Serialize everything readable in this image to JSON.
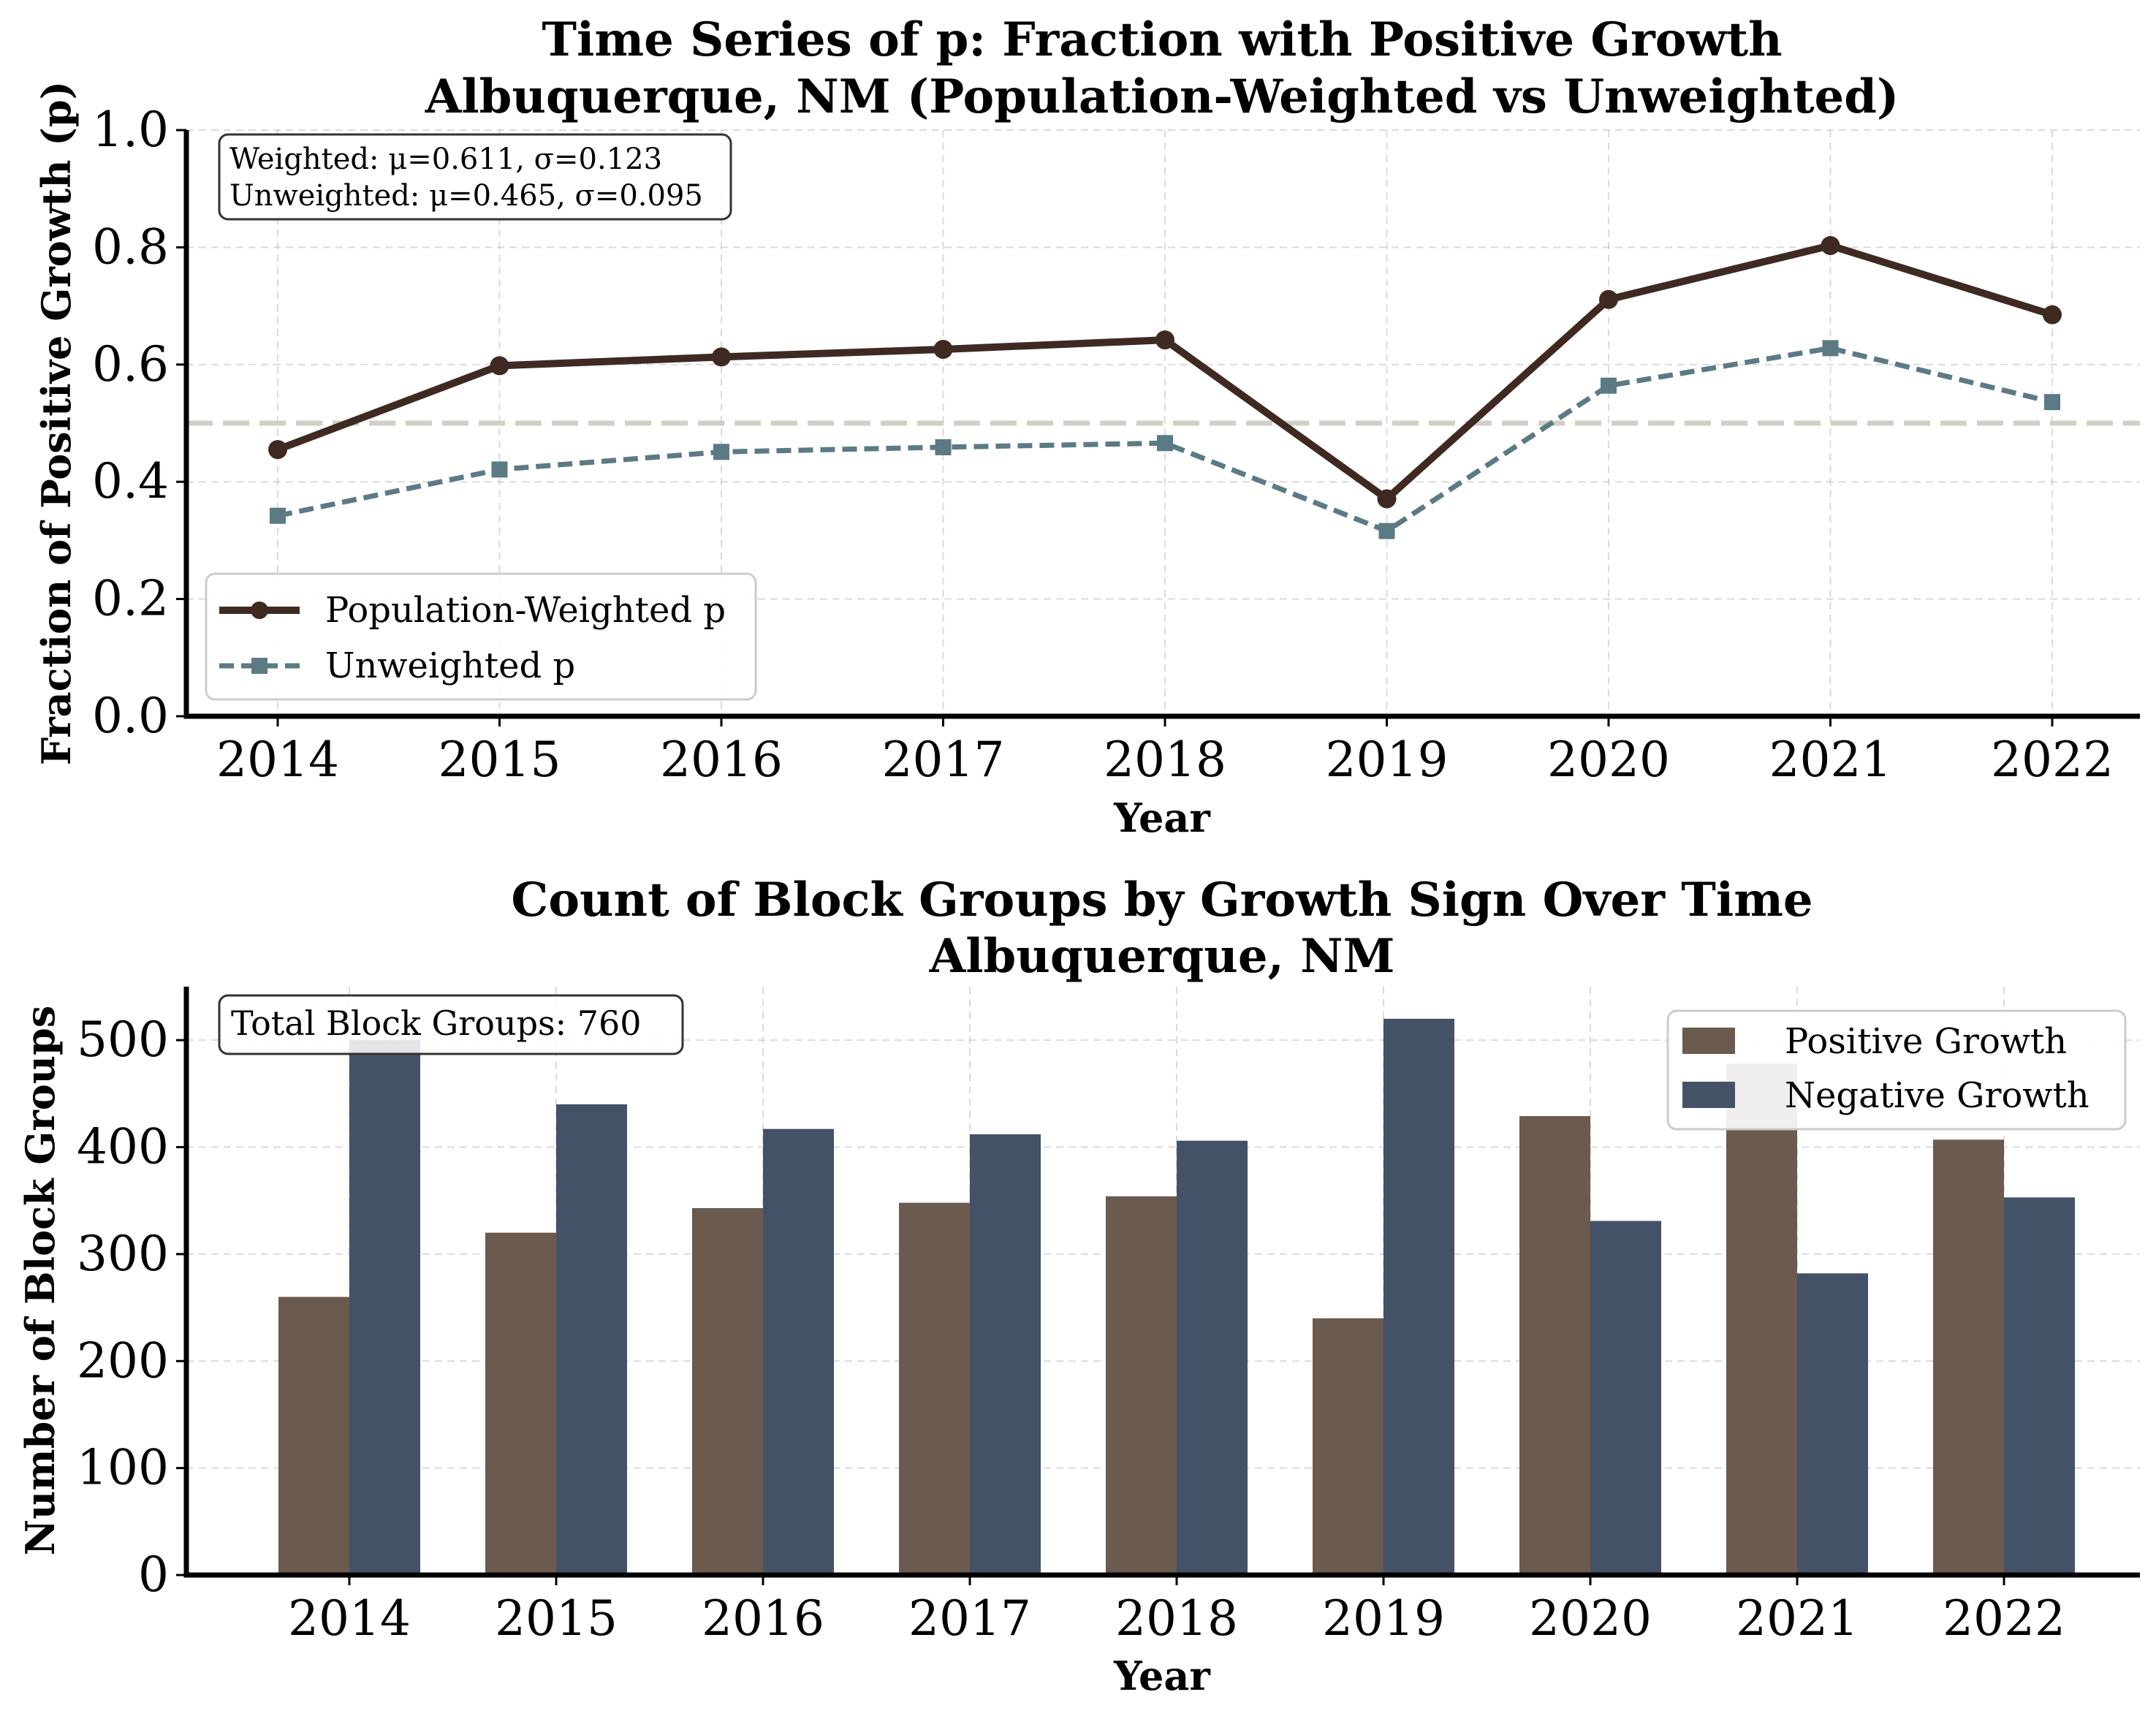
{
  "chart_data": [
    {
      "type": "line",
      "title": "Time Series of p: Fraction with Positive Growth",
      "subtitle": "Albuquerque, NM (Population-Weighted vs Unweighted)",
      "xlabel": "Year",
      "ylabel": "Fraction of Positive Growth (p)",
      "x": [
        "2014",
        "2015",
        "2016",
        "2017",
        "2018",
        "2019",
        "2020",
        "2021",
        "2022"
      ],
      "ylim": [
        0,
        1.0
      ],
      "yticks": [
        "0.0",
        "0.2",
        "0.4",
        "0.6",
        "0.8",
        "1.0"
      ],
      "reference_line": 0.5,
      "grid": true,
      "legend_position": "lower-left",
      "series": [
        {
          "name": "Population-Weighted p",
          "color": "#3e2a22",
          "marker": "circle",
          "linestyle": "solid",
          "values": [
            0.455,
            0.598,
            0.613,
            0.626,
            0.642,
            0.371,
            0.711,
            0.803,
            0.685
          ]
        },
        {
          "name": "Unweighted p",
          "color": "#5b7a84",
          "marker": "square",
          "linestyle": "dashed",
          "values": [
            0.342,
            0.421,
            0.451,
            0.459,
            0.466,
            0.316,
            0.564,
            0.628,
            0.536
          ]
        }
      ],
      "annotation": [
        "Weighted: μ=0.611, σ=0.123",
        "Unweighted: μ=0.465, σ=0.095"
      ]
    },
    {
      "type": "bar",
      "title": "Count of Block Groups by Growth Sign Over Time",
      "subtitle": "Albuquerque, NM",
      "xlabel": "Year",
      "ylabel": "Number of Block Groups",
      "categories": [
        "2014",
        "2015",
        "2016",
        "2017",
        "2018",
        "2019",
        "2020",
        "2021",
        "2022"
      ],
      "ylim": [
        0,
        550
      ],
      "yticks": [
        "0",
        "100",
        "200",
        "300",
        "400",
        "500"
      ],
      "grid": true,
      "legend_position": "top-right",
      "series": [
        {
          "name": "Positive Growth",
          "color": "#6b5a4e",
          "values": [
            260,
            320,
            343,
            348,
            354,
            240,
            429,
            478,
            407
          ]
        },
        {
          "name": "Negative Growth",
          "color": "#445268",
          "values": [
            500,
            440,
            417,
            412,
            406,
            520,
            331,
            282,
            353
          ]
        }
      ],
      "annotation": "Total Block Groups: 760"
    }
  ]
}
